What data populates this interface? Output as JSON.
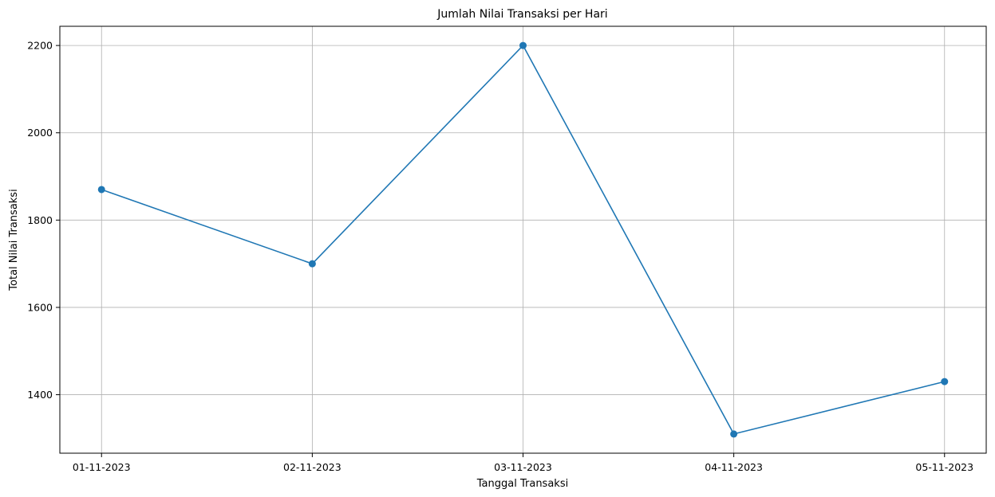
{
  "chart_data": {
    "type": "line",
    "title": "Jumlah Nilai Transaksi per Hari",
    "xlabel": "Tanggal Transaksi",
    "ylabel": "Total Nilai Transaksi",
    "x": [
      "01-11-2023",
      "02-11-2023",
      "03-11-2023",
      "04-11-2023",
      "05-11-2023"
    ],
    "series": [
      {
        "values": [
          1870,
          1700,
          2200,
          1310,
          1430
        ],
        "color": "#1f77b4",
        "marker": "circle"
      }
    ],
    "yticks": [
      1400,
      1600,
      1800,
      2000,
      2200
    ],
    "ylim": [
      1266,
      2244
    ],
    "grid": true,
    "legend": "none"
  }
}
